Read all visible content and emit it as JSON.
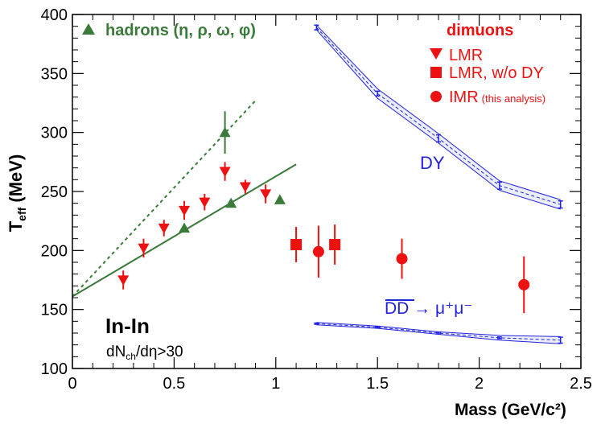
{
  "chart_data": {
    "type": "scatter",
    "title": "",
    "xlabel": "Mass (GeV/c²)",
    "ylabel_main": "T",
    "ylabel_sub": "eff",
    "ylabel_unit": " (MeV)",
    "xlim": [
      0,
      2.5
    ],
    "ylim": [
      100,
      400
    ],
    "xticks": [
      0,
      0.5,
      1,
      1.5,
      2,
      2.5
    ],
    "xtick_labels": [
      "0",
      "0.5",
      "1",
      "1.5",
      "2",
      "2.5"
    ],
    "yticks": [
      100,
      150,
      200,
      250,
      300,
      350,
      400
    ],
    "ytick_labels": [
      "100",
      "150",
      "200",
      "250",
      "300",
      "350",
      "400"
    ],
    "grid": false,
    "colors": {
      "hadrons": "#3a7a3a",
      "dimuons": "#ee1111",
      "dy": "#2222dd",
      "band": "#8899ee",
      "axis": "#000000"
    },
    "legend": {
      "hadrons_label": "hadrons (η, ρ, ω, φ)",
      "dimuons_title": "dimuons",
      "lmr_label": "LMR",
      "lmr_wo_dy_label": "LMR, w/o DY",
      "imr_label": "IMR",
      "imr_note": "(this analysis)"
    },
    "annotations": {
      "system": "In-In",
      "cut_main": "dN",
      "cut_sub": "ch",
      "cut_rest": "/dη>30",
      "dy_label": "DY",
      "dd_label": "DD",
      "dd_arrow": " → μ⁺μ⁻"
    },
    "series": [
      {
        "key": "hadrons",
        "marker": "triangle-up",
        "color": "#3a7a3a",
        "points": [
          {
            "x": 0.55,
            "y": 219,
            "err": 3
          },
          {
            "x": 0.75,
            "y": 300,
            "err": 18
          },
          {
            "x": 0.78,
            "y": 240,
            "err": 3
          },
          {
            "x": 1.02,
            "y": 243,
            "err": 3
          }
        ]
      },
      {
        "key": "lmr",
        "marker": "triangle-down",
        "color": "#ee1111",
        "points": [
          {
            "x": 0.25,
            "y": 175,
            "err": 8
          },
          {
            "x": 0.35,
            "y": 202,
            "err": 8
          },
          {
            "x": 0.45,
            "y": 219,
            "err": 7
          },
          {
            "x": 0.55,
            "y": 234,
            "err": 8
          },
          {
            "x": 0.65,
            "y": 241,
            "err": 7
          },
          {
            "x": 0.75,
            "y": 267,
            "err": 8
          },
          {
            "x": 0.85,
            "y": 254,
            "err": 6
          },
          {
            "x": 0.95,
            "y": 248,
            "err": 8
          }
        ]
      },
      {
        "key": "lmr_wo_dy",
        "marker": "square",
        "color": "#ee1111",
        "points": [
          {
            "x": 1.1,
            "y": 205,
            "err": 15
          },
          {
            "x": 1.29,
            "y": 205,
            "err": 17
          }
        ]
      },
      {
        "key": "imr",
        "marker": "circle",
        "color": "#ee1111",
        "points": [
          {
            "x": 1.21,
            "y": 199,
            "err": 22
          },
          {
            "x": 1.62,
            "y": 193,
            "err": 17
          },
          {
            "x": 2.22,
            "y": 171,
            "err": 24
          }
        ]
      }
    ],
    "fits": {
      "solid": {
        "x": [
          0,
          1.1
        ],
        "y": [
          161,
          273
        ],
        "color": "#3a7a3a"
      },
      "dashed": {
        "x": [
          0,
          0.9
        ],
        "y": [
          161,
          327
        ],
        "color": "#3a7a3a"
      }
    },
    "dy_curve": {
      "x": [
        1.2,
        1.5,
        1.8,
        2.1,
        2.4
      ],
      "center": [
        389,
        333,
        295,
        255,
        239
      ],
      "upper": [
        391,
        337,
        299,
        259,
        243
      ],
      "lower": [
        387,
        329,
        291,
        251,
        235
      ],
      "err": [
        2,
        2,
        3,
        3,
        3
      ]
    },
    "dd_curve": {
      "x": [
        1.2,
        1.5,
        1.8,
        2.1,
        2.4
      ],
      "center": [
        138,
        135,
        130,
        126,
        124
      ],
      "upper": [
        139,
        136,
        131,
        128,
        127
      ],
      "lower": [
        137,
        134,
        129,
        124,
        121
      ],
      "err": [
        0.5,
        0.5,
        0.7,
        0.7,
        2.5
      ]
    }
  }
}
